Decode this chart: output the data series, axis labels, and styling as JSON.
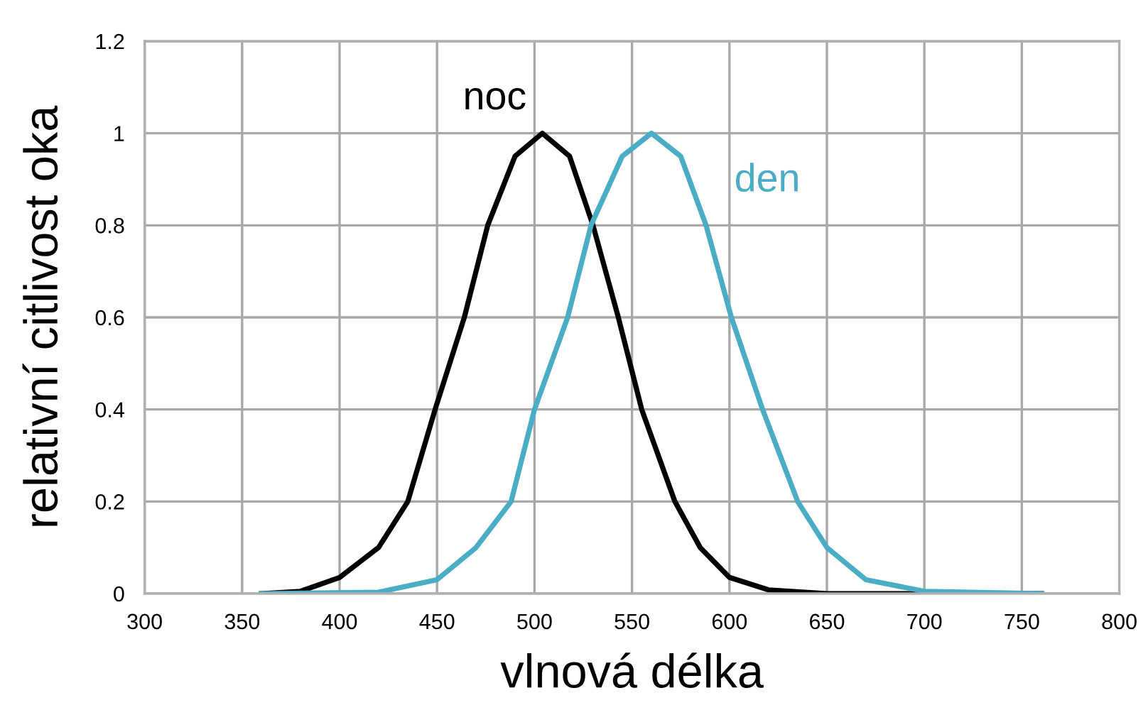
{
  "chart_data": {
    "type": "line",
    "xlabel": "vlnová délka",
    "ylabel": "relativní citlivost oka",
    "xlim": [
      300,
      800
    ],
    "xticks": [
      300,
      350,
      400,
      450,
      500,
      550,
      600,
      650,
      700,
      750,
      800
    ],
    "ylim": [
      0,
      1.2
    ],
    "yticks": [
      0,
      0.2,
      0.4,
      0.6,
      0.8,
      1,
      1.2
    ],
    "grid": true,
    "legend": false,
    "series": [
      {
        "name": "noc",
        "color": "#000000",
        "x": [
          360,
          380,
          400,
          420,
          435,
          449,
          464,
          476,
          490,
          504,
          518,
          530,
          543,
          555,
          572,
          585,
          600,
          620,
          650,
          700,
          760
        ],
        "values": [
          0,
          0.005,
          0.035,
          0.1,
          0.2,
          0.4,
          0.6,
          0.8,
          0.95,
          1.0,
          0.95,
          0.8,
          0.6,
          0.4,
          0.2,
          0.1,
          0.035,
          0.008,
          0,
          0,
          0
        ]
      },
      {
        "name": "den",
        "color": "#4bacc6",
        "x": [
          360,
          420,
          450,
          470,
          488,
          500,
          517,
          529,
          545,
          560,
          575,
          588,
          601,
          617,
          635,
          650,
          670,
          700,
          760
        ],
        "values": [
          0,
          0.003,
          0.03,
          0.1,
          0.2,
          0.4,
          0.6,
          0.8,
          0.95,
          1.0,
          0.95,
          0.8,
          0.6,
          0.4,
          0.2,
          0.1,
          0.03,
          0.005,
          0
        ]
      }
    ]
  }
}
